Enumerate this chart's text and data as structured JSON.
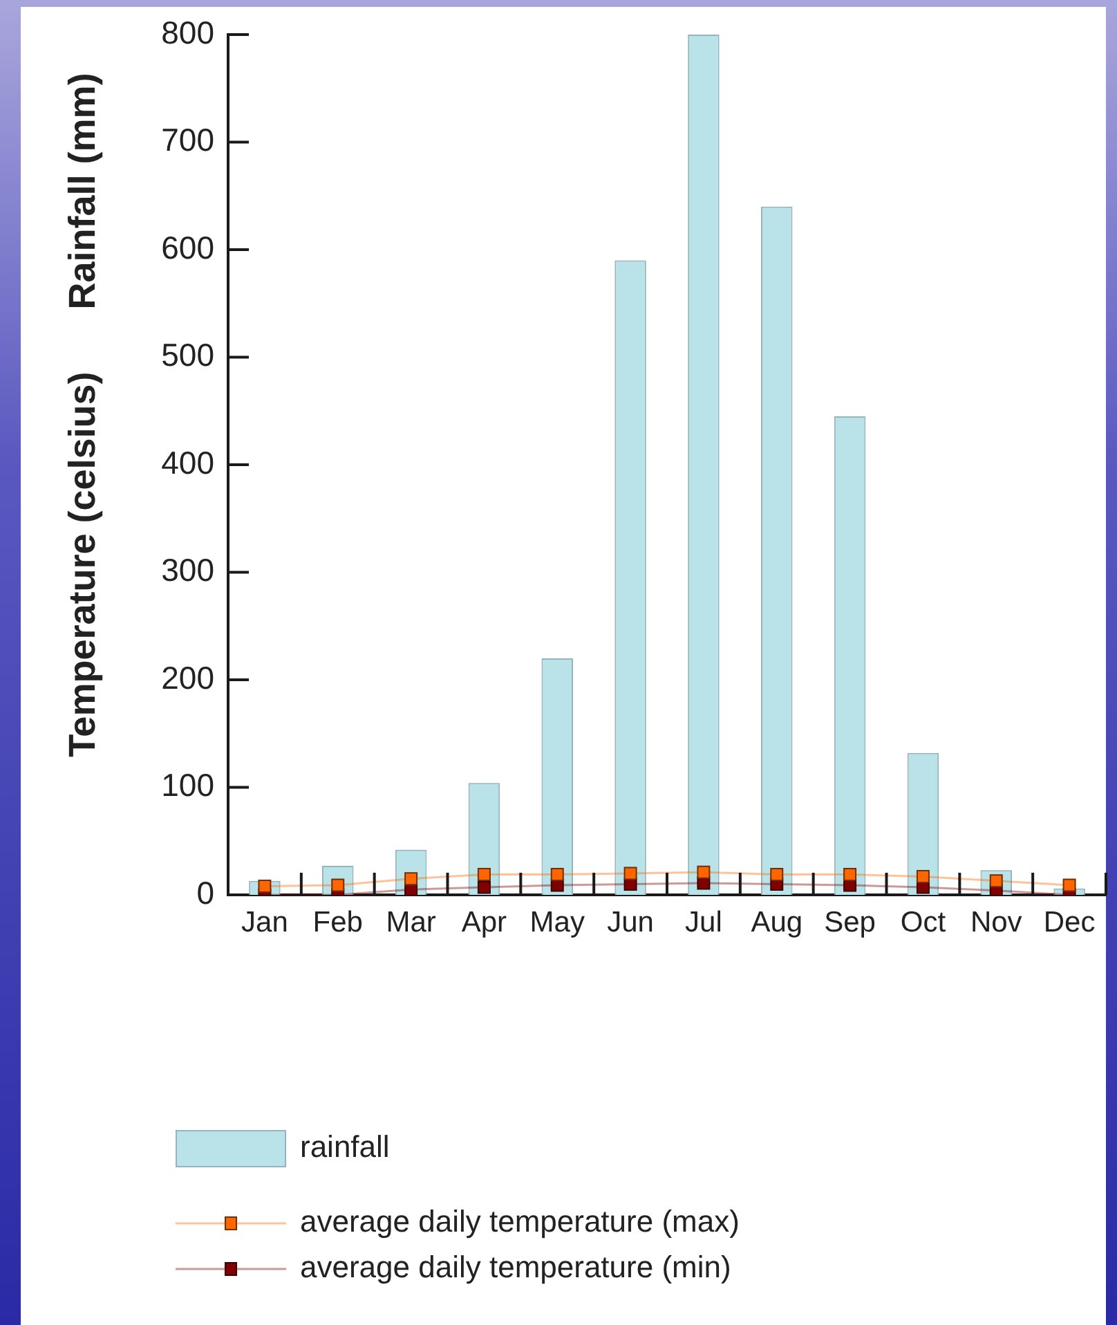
{
  "chart_data": {
    "type": "bar",
    "ylabel": "Temperature (celsius)      Rainfall (mm)",
    "categories": [
      "Jan",
      "Feb",
      "Mar",
      "Apr",
      "May",
      "Jun",
      "Jul",
      "Aug",
      "Sep",
      "Oct",
      "Nov",
      "Dec"
    ],
    "series": [
      {
        "name": "rainfall",
        "color": "#b9e3e9",
        "values": [
          13,
          27,
          42,
          104,
          220,
          590,
          800,
          640,
          445,
          132,
          23,
          6
        ]
      },
      {
        "name": "average daily temperature (max)",
        "type": "line",
        "color": "#ff6600",
        "values": [
          8,
          9,
          15,
          19,
          19,
          20,
          21,
          19,
          19,
          17,
          13,
          9
        ]
      },
      {
        "name": "average daily temperature (min)",
        "type": "line",
        "color": "#800000",
        "values": [
          0,
          0,
          5,
          7,
          9,
          10,
          11,
          10,
          9,
          7,
          4,
          0
        ]
      }
    ],
    "ylim": [
      0,
      800
    ],
    "yticks": [
      0,
      100,
      200,
      300,
      400,
      500,
      600,
      700,
      800
    ],
    "marker": "square",
    "line_style": "solid",
    "legend": "bottom left"
  }
}
